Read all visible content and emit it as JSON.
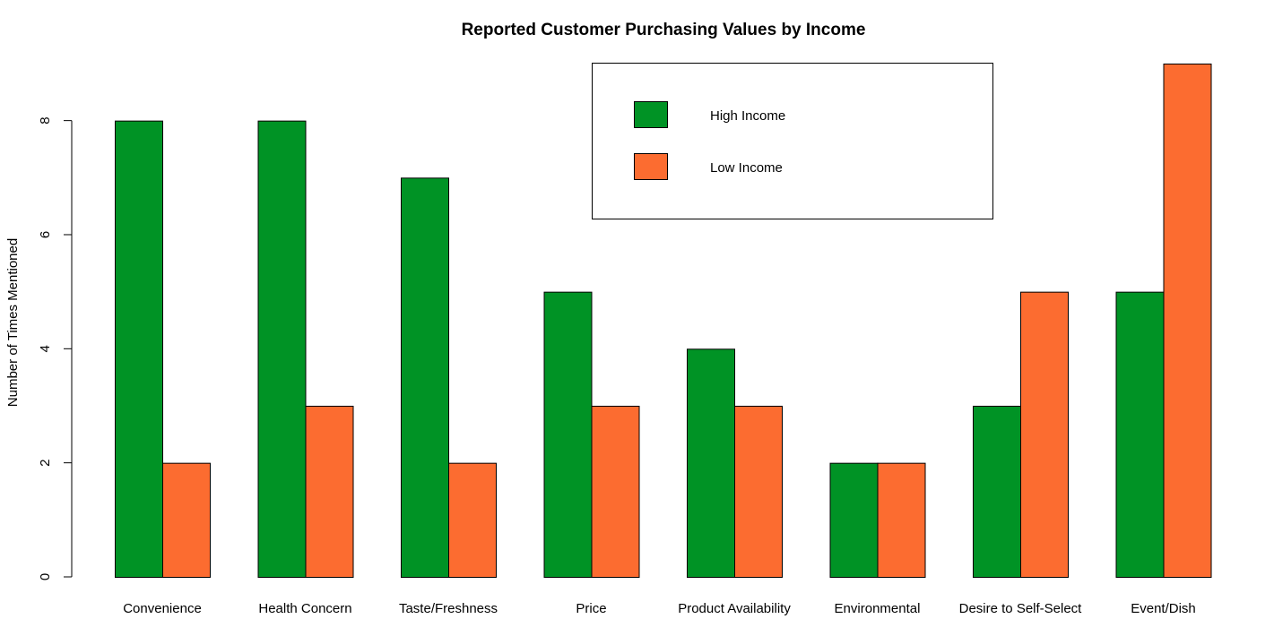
{
  "chart_data": {
    "type": "bar",
    "title": "Reported Customer Purchasing Values by Income",
    "xlabel": "",
    "ylabel": "Number of Times Mentioned",
    "ylim": [
      0,
      9
    ],
    "yticks": [
      0,
      2,
      4,
      6,
      8
    ],
    "grid": false,
    "legend_position": "top-right",
    "categories": [
      "Convenience",
      "Health Concern",
      "Taste/Freshness",
      "Price",
      "Product Availability",
      "Environmental",
      "Desire to Self-Select",
      "Event/Dish"
    ],
    "series": [
      {
        "name": "High Income",
        "color": "#009325",
        "values": [
          8,
          8,
          7,
          5,
          4,
          2,
          3,
          5
        ]
      },
      {
        "name": "Low Income",
        "color": "#fc6c30",
        "values": [
          2,
          3,
          2,
          3,
          3,
          2,
          5,
          9
        ]
      }
    ]
  }
}
